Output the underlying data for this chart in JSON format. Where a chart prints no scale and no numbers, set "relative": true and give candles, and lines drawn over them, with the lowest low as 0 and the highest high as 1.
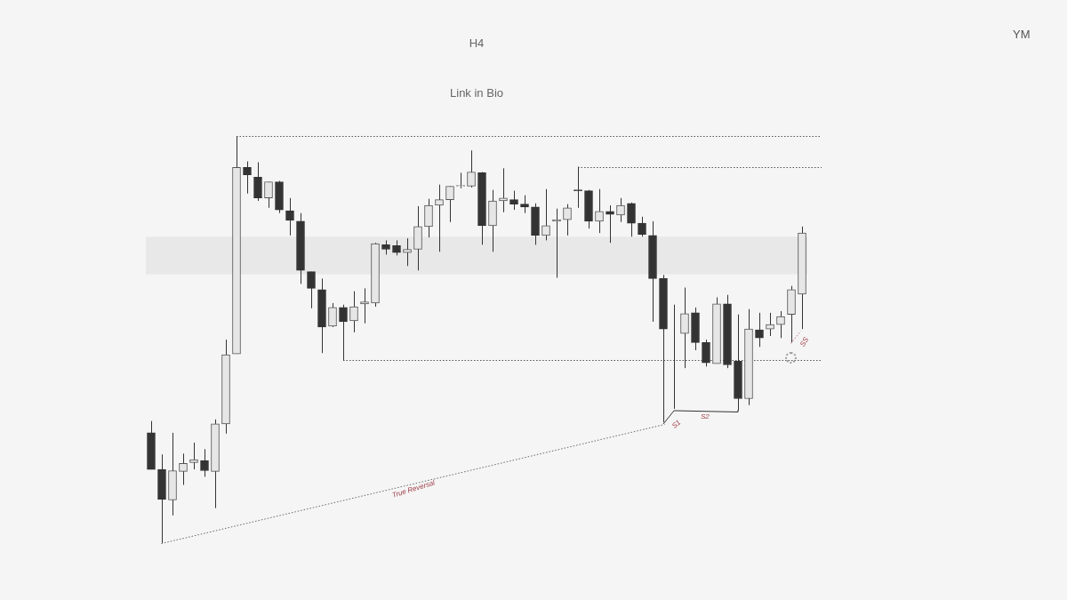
{
  "chart_data": {
    "type": "candlestick",
    "title": "H4",
    "subtitle": "Link in Bio",
    "relative": true,
    "categories": [
      null,
      null,
      null,
      null,
      null,
      null,
      null,
      null,
      null,
      null,
      null,
      null,
      null,
      null,
      null,
      null,
      null,
      null,
      null,
      null,
      null,
      null,
      null,
      null,
      null,
      null,
      null,
      null,
      null,
      null,
      null,
      null,
      null,
      null,
      null,
      null,
      null,
      null,
      null,
      null,
      null,
      null,
      null,
      null,
      null,
      null,
      null,
      null,
      null,
      null,
      null,
      null,
      null,
      null,
      null,
      null,
      null,
      null,
      null,
      null,
      null,
      null
    ],
    "ohlc": [
      [
        0.271,
        0.3,
        0.181,
        0.181
      ],
      [
        0.181,
        0.218,
        0,
        0.108
      ],
      [
        0.106,
        0.271,
        0.068,
        0.178
      ],
      [
        0.176,
        0.22,
        0.143,
        0.196
      ],
      [
        0.198,
        0.247,
        0.181,
        0.205
      ],
      [
        0.203,
        0.231,
        0.163,
        0.178
      ],
      [
        0.176,
        0.304,
        0.086,
        0.293
      ],
      [
        0.293,
        0.5,
        0.269,
        0.463
      ],
      [
        0.465,
        1,
        0.465,
        0.923
      ],
      [
        0.923,
        0.938,
        0.859,
        0.905
      ],
      [
        0.899,
        0.936,
        0.841,
        0.848
      ],
      [
        0.848,
        0.888,
        0.824,
        0.888
      ],
      [
        0.888,
        0.89,
        0.811,
        0.819
      ],
      [
        0.817,
        0.848,
        0.756,
        0.793
      ],
      [
        0.791,
        0.811,
        0.637,
        0.67
      ],
      [
        0.667,
        0.667,
        0.577,
        0.626
      ],
      [
        0.623,
        0.65,
        0.467,
        0.531
      ],
      [
        0.533,
        0.59,
        0.531,
        0.579
      ],
      [
        0.579,
        0.586,
        0.449,
        0.544
      ],
      [
        0.546,
        0.619,
        0.518,
        0.581
      ],
      [
        0.588,
        0.626,
        0.54,
        0.593
      ],
      [
        0.59,
        0.738,
        0.581,
        0.736
      ],
      [
        0.733,
        0.744,
        0.709,
        0.722
      ],
      [
        0.731,
        0.744,
        0.707,
        0.714
      ],
      [
        0.714,
        0.749,
        0.681,
        0.722
      ],
      [
        0.722,
        0.828,
        0.67,
        0.778
      ],
      [
        0.778,
        0.846,
        0.751,
        0.83
      ],
      [
        0.83,
        0.881,
        0.716,
        0.844
      ],
      [
        0.844,
        0.877,
        0.789,
        0.877
      ],
      [
        0.877,
        0.91,
        0.872,
        0.879
      ],
      [
        0.877,
        0.965,
        0.874,
        0.912
      ],
      [
        0.91,
        0.912,
        0.733,
        0.78
      ],
      [
        0.78,
        0.868,
        0.716,
        0.841
      ],
      [
        0.841,
        0.921,
        0.813,
        0.848
      ],
      [
        0.844,
        0.866,
        0.819,
        0.833
      ],
      [
        0.833,
        0.855,
        0.811,
        0.826
      ],
      [
        0.826,
        0.835,
        0.733,
        0.756
      ],
      [
        0.756,
        0.87,
        0.744,
        0.78
      ],
      [
        0.791,
        0.822,
        0.652,
        0.795
      ],
      [
        0.795,
        0.833,
        0.756,
        0.824
      ],
      [
        0.868,
        0.925,
        0.824,
        0.866
      ],
      [
        0.866,
        0.868,
        0.773,
        0.791
      ],
      [
        0.791,
        0.87,
        0.762,
        0.815
      ],
      [
        0.815,
        0.83,
        0.738,
        0.808
      ],
      [
        0.806,
        0.848,
        0.789,
        0.83
      ],
      [
        0.835,
        0.837,
        0.753,
        0.786
      ],
      [
        0.786,
        0.802,
        0.753,
        0.758
      ],
      [
        0.756,
        0.791,
        0.544,
        0.65
      ],
      [
        0.65,
        0.659,
        0.297,
        0.526
      ],
      [
        0.515,
        0.586,
        0.33,
        0.515
      ],
      [
        0.515,
        0.628,
        0.43,
        0.564
      ],
      [
        0.566,
        0.579,
        0.474,
        0.493
      ],
      [
        0.493,
        0.5,
        0.434,
        0.443
      ],
      [
        0.441,
        0.604,
        0.441,
        0.588
      ],
      [
        0.588,
        0.61,
        0.43,
        0.438
      ],
      [
        0.447,
        0.562,
        0.326,
        0.355
      ],
      [
        0.355,
        0.575,
        0.339,
        0.526
      ],
      [
        0.524,
        0.566,
        0.482,
        0.504
      ],
      [
        0.526,
        0.566,
        0.509,
        0.537
      ],
      [
        0.537,
        0.57,
        0.504,
        0.557
      ],
      [
        0.562,
        0.632,
        0.493,
        0.623
      ],
      [
        0.612,
        0.778,
        0.526,
        0.762
      ]
    ],
    "ref_lines": [
      {
        "axis": "y",
        "value": 1,
        "color": "#555555",
        "line_style": "dotted"
      },
      {
        "axis": "y",
        "value": 0.925,
        "color": "#555555",
        "line_style": "dotted"
      },
      {
        "axis": "y",
        "value": 0.449,
        "color": "#555555",
        "line_style": "dotted"
      }
    ],
    "bands": [
      {
        "axis": "y",
        "from": 0.661,
        "to": 0.753,
        "color": "#e8e8e8"
      }
    ],
    "annotations": [
      "YM",
      "True Reversal",
      "S1",
      "S2",
      "SS"
    ]
  }
}
